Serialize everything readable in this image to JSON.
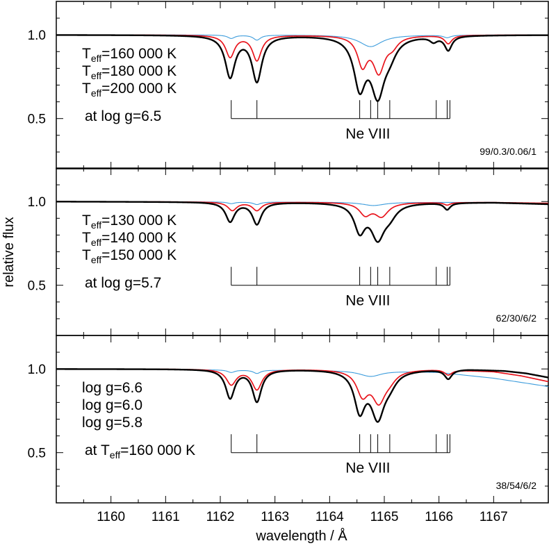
{
  "chart_data": {
    "type": "line",
    "xlabel": "wavelength / Å",
    "ylabel": "relative flux",
    "xlim": [
      1159.0,
      1168.0
    ],
    "ylim": [
      0.2,
      1.2
    ],
    "xticks_major": [
      1160,
      1161,
      1162,
      1163,
      1164,
      1165,
      1166,
      1167
    ],
    "yticks_labeled": [
      0.5,
      1.0
    ],
    "tick_labels": {
      "y_0_5": "0.5",
      "y_1_0": "1.0"
    },
    "series_colors": {
      "hot": "#000000",
      "mid": "#e8141c",
      "cool": "#3c9cdc"
    },
    "line_marks": {
      "label": "Ne VIII",
      "wavelengths": [
        1162.2,
        1162.67,
        1164.55,
        1164.75,
        1164.88,
        1165.1,
        1165.95,
        1166.15,
        1166.2
      ],
      "y_top": 0.61,
      "y_bottom": 0.5
    },
    "panels": [
      {
        "legend_lines": [
          "T|eff|=160 000 K",
          "T|eff|=180 000 K",
          "T|eff|=200 000 K"
        ],
        "condition": "at log g=6.5",
        "model_id": "99/0.3/0.06/1",
        "series": [
          {
            "color": "#000000",
            "continuum": [
              [
                1159,
                1.0
              ],
              [
                1168,
                1.0
              ]
            ],
            "lines": [
              [
                1162.18,
                0.245,
                0.11
              ],
              [
                1162.67,
                0.27,
                0.11
              ],
              [
                1164.55,
                0.29,
                0.13
              ],
              [
                1164.88,
                0.33,
                0.15
              ],
              [
                1165.1,
                0.08,
                0.15
              ],
              [
                1165.9,
                0.03,
                0.08
              ],
              [
                1166.17,
                0.085,
                0.08
              ]
            ]
          },
          {
            "color": "#e8141c",
            "continuum": [
              [
                1159,
                1.0
              ],
              [
                1168,
                1.0
              ]
            ],
            "lines": [
              [
                1162.18,
                0.13,
                0.1
              ],
              [
                1162.67,
                0.15,
                0.1
              ],
              [
                1164.6,
                0.17,
                0.11
              ],
              [
                1164.9,
                0.21,
                0.13
              ],
              [
                1165.15,
                0.05,
                0.12
              ],
              [
                1166.17,
                0.05,
                0.08
              ]
            ]
          },
          {
            "color": "#3c9cdc",
            "continuum": [
              [
                1159,
                1.0
              ],
              [
                1168,
                1.0
              ]
            ],
            "lines": [
              [
                1162.2,
                0.02,
                0.08
              ],
              [
                1162.67,
                0.03,
                0.08
              ],
              [
                1164.75,
                0.07,
                0.25
              ],
              [
                1166.15,
                0.015,
                0.08
              ]
            ]
          }
        ]
      },
      {
        "legend_lines": [
          "T|eff|=130 000 K",
          "T|eff|=140 000 K",
          "T|eff|=150 000 K"
        ],
        "condition": "at log g=5.7",
        "model_id": "62/30/6/2",
        "series": [
          {
            "color": "#000000",
            "continuum": [
              [
                1159,
                1.0
              ],
              [
                1167,
                0.995
              ],
              [
                1168,
                0.985
              ]
            ],
            "lines": [
              [
                1162.18,
                0.115,
                0.1
              ],
              [
                1162.67,
                0.13,
                0.1
              ],
              [
                1164.55,
                0.16,
                0.12
              ],
              [
                1164.88,
                0.2,
                0.15
              ],
              [
                1165.1,
                0.06,
                0.15
              ],
              [
                1166.15,
                0.04,
                0.07
              ]
            ]
          },
          {
            "color": "#e8141c",
            "continuum": [
              [
                1159,
                1.0
              ],
              [
                1167,
                0.995
              ],
              [
                1168,
                0.99
              ]
            ],
            "lines": [
              [
                1162.22,
                0.05,
                0.1
              ],
              [
                1162.67,
                0.05,
                0.1
              ],
              [
                1164.65,
                0.07,
                0.13
              ],
              [
                1164.95,
                0.08,
                0.15
              ],
              [
                1166.15,
                0.015,
                0.07
              ]
            ]
          },
          {
            "color": "#3c9cdc",
            "continuum": [
              [
                1159,
                1.0
              ],
              [
                1167,
                0.995
              ],
              [
                1168,
                0.99
              ]
            ],
            "lines": [
              [
                1162.2,
                0.01,
                0.08
              ],
              [
                1162.67,
                0.015,
                0.08
              ],
              [
                1164.8,
                0.02,
                0.25
              ]
            ]
          }
        ]
      },
      {
        "legend_lines": [
          "log g=6.6",
          "log g=6.0",
          "log g=5.8"
        ],
        "condition_parts": [
          "at T",
          "eff",
          "=160 000 K"
        ],
        "model_id": "38/54/6/2",
        "series": [
          {
            "color": "#000000",
            "continuum": [
              [
                1159,
                1.0
              ],
              [
                1166.5,
                1.0
              ],
              [
                1167.2,
                0.99
              ],
              [
                1167.6,
                0.975
              ],
              [
                1168,
                0.95
              ]
            ],
            "lines": [
              [
                1162.18,
                0.17,
                0.1
              ],
              [
                1162.67,
                0.19,
                0.1
              ],
              [
                1164.55,
                0.23,
                0.12
              ],
              [
                1164.88,
                0.27,
                0.15
              ],
              [
                1165.1,
                0.06,
                0.15
              ],
              [
                1166.17,
                0.055,
                0.08
              ]
            ]
          },
          {
            "color": "#e8141c",
            "continuum": [
              [
                1159,
                1.0
              ],
              [
                1166,
                1.0
              ],
              [
                1167,
                0.985
              ],
              [
                1167.5,
                0.96
              ],
              [
                1168,
                0.925
              ]
            ],
            "lines": [
              [
                1162.2,
                0.09,
                0.11
              ],
              [
                1162.67,
                0.12,
                0.11
              ],
              [
                1164.6,
                0.14,
                0.13
              ],
              [
                1164.9,
                0.18,
                0.15
              ],
              [
                1165.1,
                0.04,
                0.14
              ],
              [
                1166.17,
                0.03,
                0.08
              ]
            ]
          },
          {
            "color": "#3c9cdc",
            "continuum": [
              [
                1159,
                1.0
              ],
              [
                1165,
                0.99
              ],
              [
                1166,
                0.98
              ],
              [
                1167,
                0.945
              ],
              [
                1168,
                0.895
              ]
            ],
            "lines": [
              [
                1162.2,
                0.015,
                0.08
              ],
              [
                1162.67,
                0.02,
                0.08
              ],
              [
                1164.75,
                0.035,
                0.25
              ]
            ]
          }
        ]
      }
    ]
  }
}
